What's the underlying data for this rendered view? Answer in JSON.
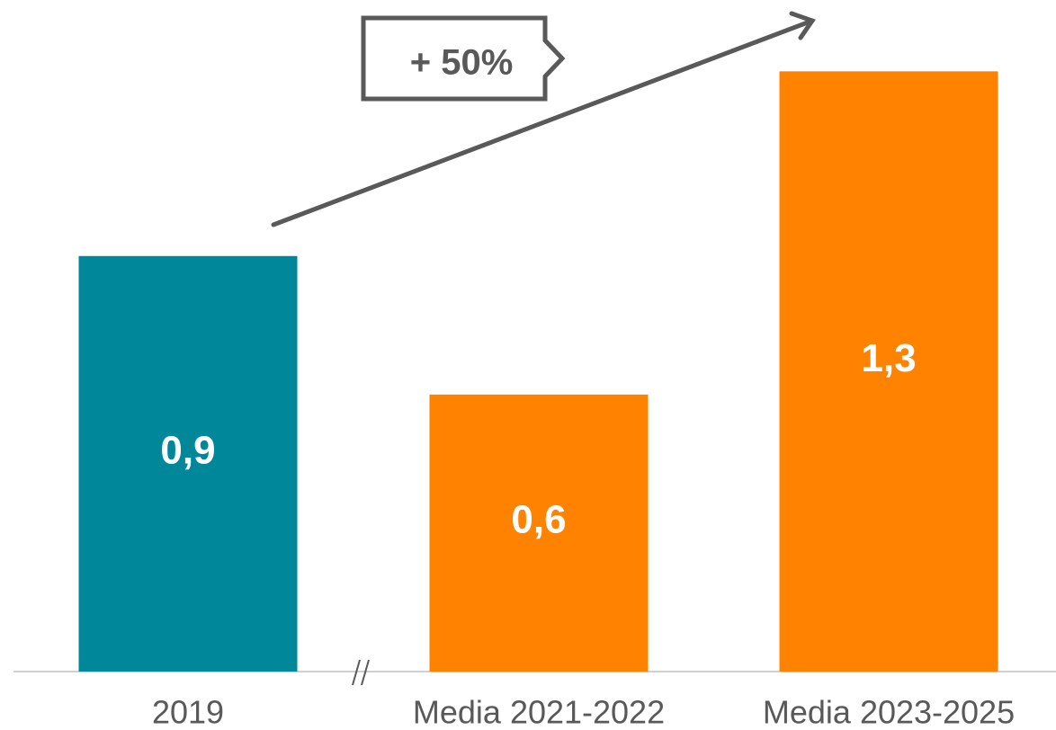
{
  "chart_data": {
    "type": "bar",
    "categories": [
      "2019",
      "Media 2021-2022",
      "Media 2023-2025"
    ],
    "values": [
      0.9,
      0.6,
      1.3
    ],
    "value_labels": [
      "0,9",
      "0,6",
      "1,3"
    ],
    "colors": [
      "#00879a",
      "#ff8200",
      "#ff8200"
    ],
    "annotation": "+ 50%",
    "ylim": [
      0,
      1.4
    ]
  }
}
